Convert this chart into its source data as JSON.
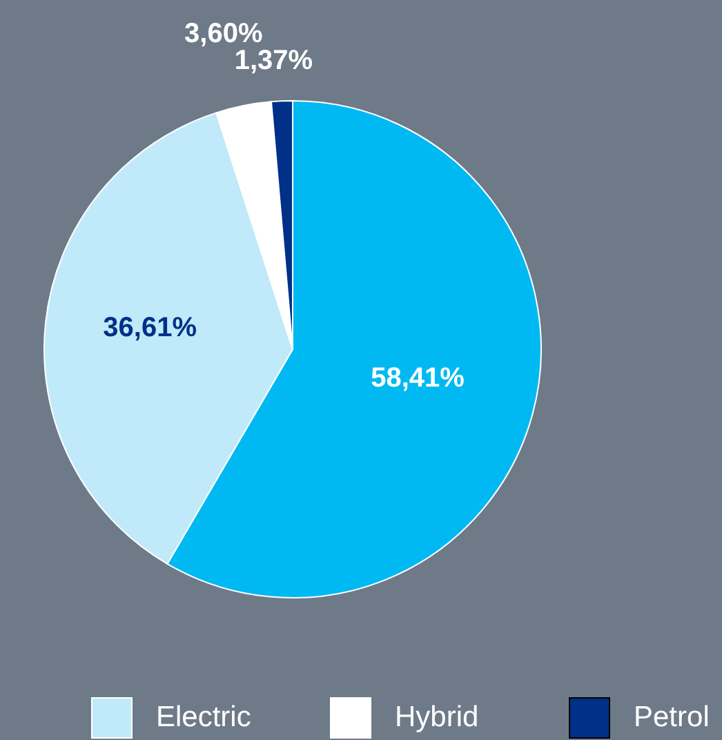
{
  "chart_data": {
    "type": "pie",
    "categories": [
      null,
      "Electric",
      "Hybrid",
      "Petrol"
    ],
    "values": [
      58.41,
      36.61,
      3.6,
      1.37
    ],
    "colors": [
      "#00b9f2",
      "#c0eaf9",
      "#ffffff",
      "#003087"
    ],
    "value_labels": [
      "58,41%",
      "36,61%",
      "3,60%",
      "1,37%"
    ],
    "legend": "bottom"
  }
}
